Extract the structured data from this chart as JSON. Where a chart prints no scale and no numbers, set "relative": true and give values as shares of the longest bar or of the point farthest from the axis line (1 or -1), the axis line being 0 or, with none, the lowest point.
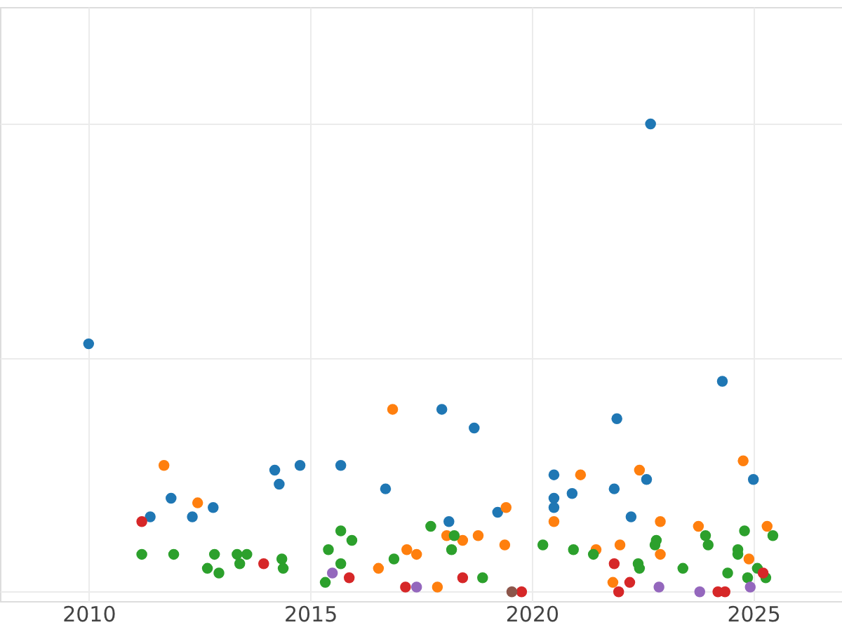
{
  "chart_data": {
    "type": "scatter",
    "relative": true,
    "marker": "circle",
    "grid": true,
    "legend": false,
    "tick_labels": "x",
    "xlim": [
      2008,
      2027
    ],
    "xticks": [
      2010,
      2015,
      2020,
      2025
    ],
    "series": [
      {
        "color": "#1f77b4",
        "x": [
          2010.0,
          2011.39,
          2011.86,
          2012.34,
          2012.81,
          2014.2,
          2014.3,
          2014.77,
          2015.69,
          2016.7,
          2017.97,
          2018.13,
          2018.7,
          2019.23,
          2020.5,
          2020.5,
          2020.5,
          2020.91,
          2021.86,
          2021.92,
          2022.24,
          2022.59,
          2022.68,
          2024.3,
          2025.0
        ],
        "values": [
          0.53,
          0.16,
          0.2,
          0.16,
          0.18,
          0.26,
          0.23,
          0.27,
          0.27,
          0.22,
          0.39,
          0.15,
          0.35,
          0.17,
          0.25,
          0.2,
          0.18,
          0.21,
          0.22,
          0.37,
          0.16,
          0.24,
          1.0,
          0.45,
          0.24
        ]
      },
      {
        "color": "#ff7f0e",
        "x": [
          2011.7,
          2012.46,
          2016.86,
          2016.54,
          2017.18,
          2017.4,
          2017.87,
          2018.08,
          2018.44,
          2018.79,
          2019.39,
          2019.42,
          2020.5,
          2021.1,
          2021.45,
          2021.83,
          2021.99,
          2022.43,
          2022.9,
          2022.9,
          2023.76,
          2024.77,
          2024.9,
          2025.31
        ],
        "values": [
          0.27,
          0.19,
          0.39,
          0.05,
          0.09,
          0.08,
          0.01,
          0.12,
          0.11,
          0.12,
          0.1,
          0.18,
          0.15,
          0.25,
          0.09,
          0.02,
          0.1,
          0.26,
          0.08,
          0.15,
          0.14,
          0.28,
          0.07,
          0.14
        ]
      },
      {
        "color": "#2ca02c",
        "x": [
          2011.2,
          2011.92,
          2012.68,
          2012.84,
          2012.94,
          2013.35,
          2013.41,
          2013.57,
          2014.36,
          2014.39,
          2015.34,
          2015.41,
          2015.69,
          2015.69,
          2015.94,
          2016.89,
          2017.72,
          2018.19,
          2018.25,
          2018.89,
          2020.25,
          2020.94,
          2021.39,
          2022.4,
          2022.43,
          2022.78,
          2022.81,
          2023.41,
          2023.92,
          2023.98,
          2024.42,
          2024.65,
          2024.65,
          2024.8,
          2024.87,
          2025.09,
          2025.28,
          2025.44
        ],
        "values": [
          0.08,
          0.08,
          0.05,
          0.08,
          0.04,
          0.08,
          0.06,
          0.08,
          0.07,
          0.05,
          0.02,
          0.09,
          0.13,
          0.06,
          0.11,
          0.07,
          0.14,
          0.09,
          0.12,
          0.03,
          0.1,
          0.09,
          0.08,
          0.06,
          0.05,
          0.1,
          0.11,
          0.05,
          0.12,
          0.1,
          0.04,
          0.09,
          0.08,
          0.13,
          0.03,
          0.05,
          0.03,
          0.12
        ]
      },
      {
        "color": "#d62728",
        "x": [
          2011.2,
          2013.95,
          2015.88,
          2017.15,
          2018.44,
          2019.77,
          2021.86,
          2021.96,
          2022.21,
          2024.2,
          2024.36,
          2025.22
        ],
        "values": [
          0.15,
          0.06,
          0.03,
          0.01,
          0.03,
          0.0,
          0.06,
          0.0,
          0.02,
          0.0,
          0.0,
          0.04
        ]
      },
      {
        "color": "#9467bd",
        "x": [
          2015.5,
          2017.4,
          2022.87,
          2023.79,
          2024.93
        ],
        "values": [
          0.04,
          0.01,
          0.01,
          0.0,
          0.01
        ]
      },
      {
        "color": "#8c564b",
        "x": [
          2019.55
        ],
        "values": [
          0.0
        ]
      }
    ]
  }
}
